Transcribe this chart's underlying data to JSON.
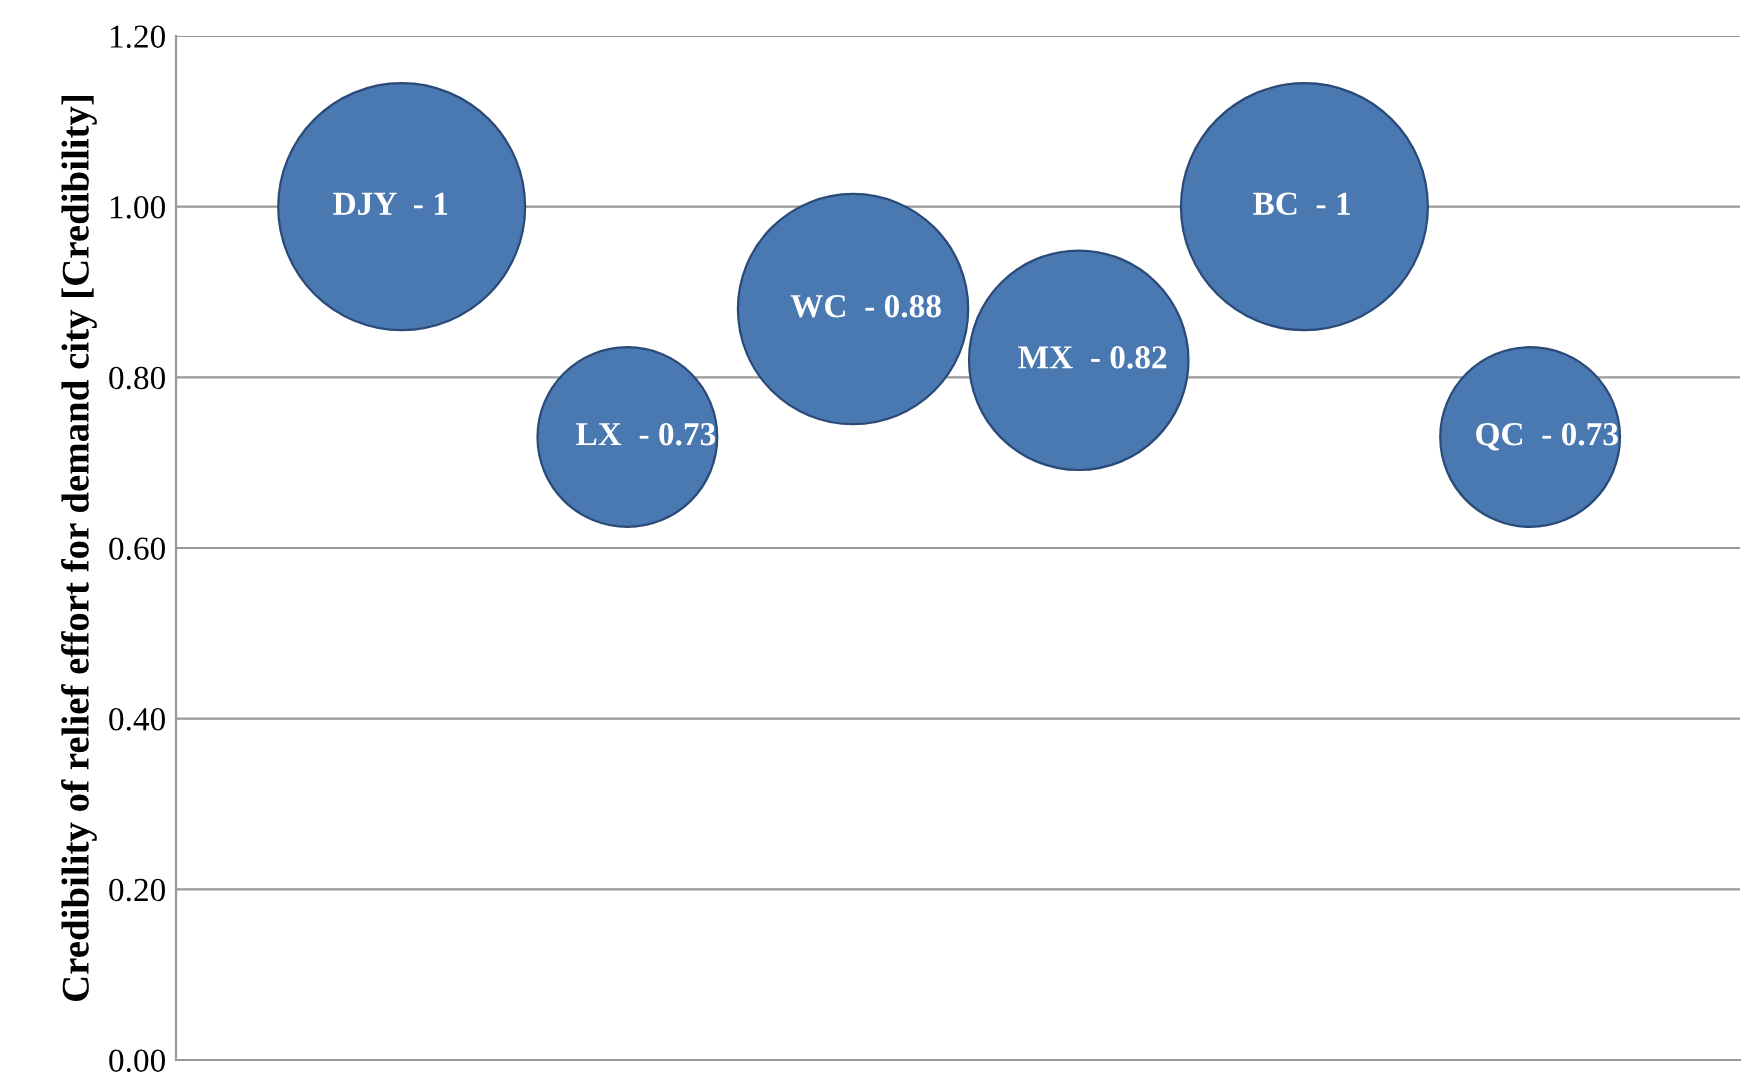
{
  "chart_data": {
    "type": "bubble",
    "ylabel": "Credibility of relief effort for demand city [Credibility]",
    "categories": [
      null,
      null,
      null,
      null,
      null,
      null
    ],
    "series": [
      {
        "name": "DJY  -",
        "color": "#4a78b0",
        "values": [
          1,
          null,
          null,
          null,
          null,
          null
        ],
        "sizes": [
          1,
          null,
          null,
          null,
          null,
          null
        ]
      },
      {
        "name": "LX  -",
        "color": "#4a78b0",
        "values": [
          null,
          0.73,
          null,
          null,
          null,
          null
        ],
        "sizes": [
          null,
          0.53,
          null,
          null,
          null,
          null
        ]
      },
      {
        "name": "WC  -",
        "color": "#4a78b0",
        "values": [
          null,
          null,
          0.88,
          null,
          null,
          null
        ],
        "sizes": [
          null,
          null,
          0.87,
          null,
          null,
          null
        ]
      },
      {
        "name": "MX  -",
        "color": "#4a78b0",
        "values": [
          null,
          null,
          null,
          0.82,
          null,
          null
        ],
        "sizes": [
          null,
          null,
          null,
          0.79,
          null,
          null
        ]
      },
      {
        "name": "BC  -",
        "color": "#4a78b0",
        "values": [
          null,
          null,
          null,
          null,
          1,
          null
        ],
        "sizes": [
          null,
          null,
          null,
          null,
          1,
          null
        ]
      },
      {
        "name": "QC  -",
        "color": "#4a78b0",
        "values": [
          null,
          null,
          null,
          null,
          null,
          0.73
        ],
        "sizes": [
          null,
          null,
          null,
          null,
          null,
          0.53
        ]
      }
    ],
    "data_labels": true,
    "ylim": [
      0,
      1.2
    ],
    "yticks": [
      {
        "value": 0,
        "label": "0.00"
      },
      {
        "value": 0.2,
        "label": "0.20"
      },
      {
        "value": 0.4,
        "label": "0.40"
      },
      {
        "value": 0.6,
        "label": "0.60"
      },
      {
        "value": 0.8,
        "label": "0.80"
      },
      {
        "value": 1.0,
        "label": "1.00"
      },
      {
        "value": 1.2,
        "label": "1.20"
      }
    ],
    "grid": "y"
  }
}
